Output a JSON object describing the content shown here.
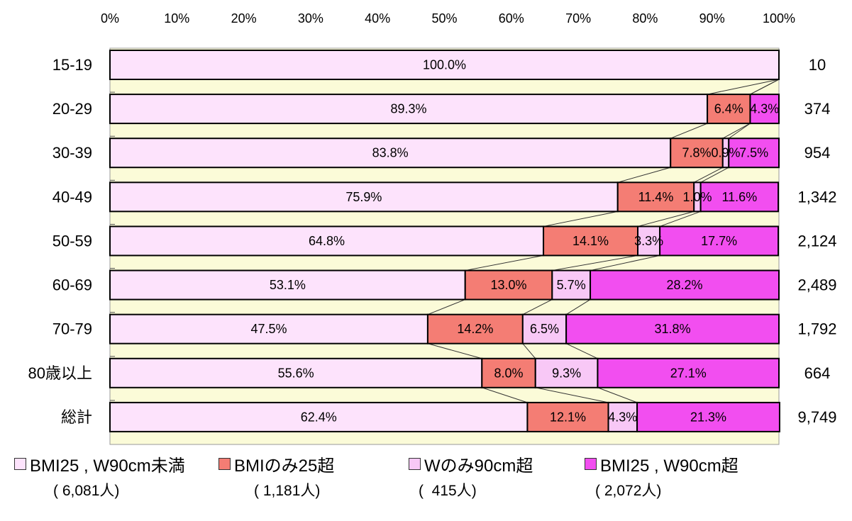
{
  "chart_data": {
    "type": "bar",
    "orientation": "horizontal",
    "stacked": "percent",
    "title": "",
    "xlabel": "",
    "ylabel": "",
    "xlim": [
      0,
      100
    ],
    "x_ticks": [
      "0%",
      "10%",
      "20%",
      "30%",
      "40%",
      "50%",
      "60%",
      "70%",
      "80%",
      "90%",
      "100%"
    ],
    "grid": false,
    "legend_position": "bottom",
    "categories": [
      "15-19",
      "20-29",
      "30-39",
      "40-49",
      "50-59",
      "60-69",
      "70-79",
      "80歳以上",
      "総計"
    ],
    "totals": [
      "10",
      "374",
      "954",
      "1,342",
      "2,124",
      "2,489",
      "1,792",
      "664",
      "9,749"
    ],
    "series": [
      {
        "name": "BMI25 , W90cm未満",
        "count_label": "( 6,081人)",
        "color": "#fde3fc",
        "values": [
          100.0,
          89.3,
          83.8,
          75.9,
          64.8,
          53.1,
          47.5,
          55.6,
          62.4
        ],
        "labels": [
          "100.0%",
          "89.3%",
          "83.8%",
          "75.9%",
          "64.8%",
          "53.1%",
          "47.5%",
          "55.6%",
          "62.4%"
        ]
      },
      {
        "name": "BMIのみ25超",
        "count_label": "( 1,181人)",
        "color": "#f47d74",
        "values": [
          0,
          6.4,
          7.8,
          11.4,
          14.1,
          13.0,
          14.2,
          8.0,
          12.1
        ],
        "labels": [
          "",
          "6.4%",
          "7.8%",
          "11.4%",
          "14.1%",
          "13.0%",
          "14.2%",
          "8.0%",
          "12.1%"
        ]
      },
      {
        "name": "Wのみ90cm超",
        "count_label": "(  415人)",
        "color": "#f8c8f6",
        "values": [
          0,
          0,
          0.9,
          1.0,
          3.3,
          5.7,
          6.5,
          9.3,
          4.3
        ],
        "labels": [
          "",
          "",
          "0.9%",
          "1.0%",
          "3.3%",
          "5.7%",
          "6.5%",
          "9.3%",
          "4.3%"
        ]
      },
      {
        "name": "BMI25 , W90cm超",
        "count_label": "( 2,072人)",
        "color": "#f24ef0",
        "values": [
          0,
          4.3,
          7.5,
          11.6,
          17.7,
          28.2,
          31.8,
          27.1,
          21.3
        ],
        "labels": [
          "",
          "4.3%",
          "7.5%",
          "11.6%",
          "17.7%",
          "28.2%",
          "31.8%",
          "27.1%",
          "21.3%"
        ]
      }
    ],
    "colors": {
      "plot_background": "#fbfbd8",
      "outline": "#000000"
    }
  }
}
